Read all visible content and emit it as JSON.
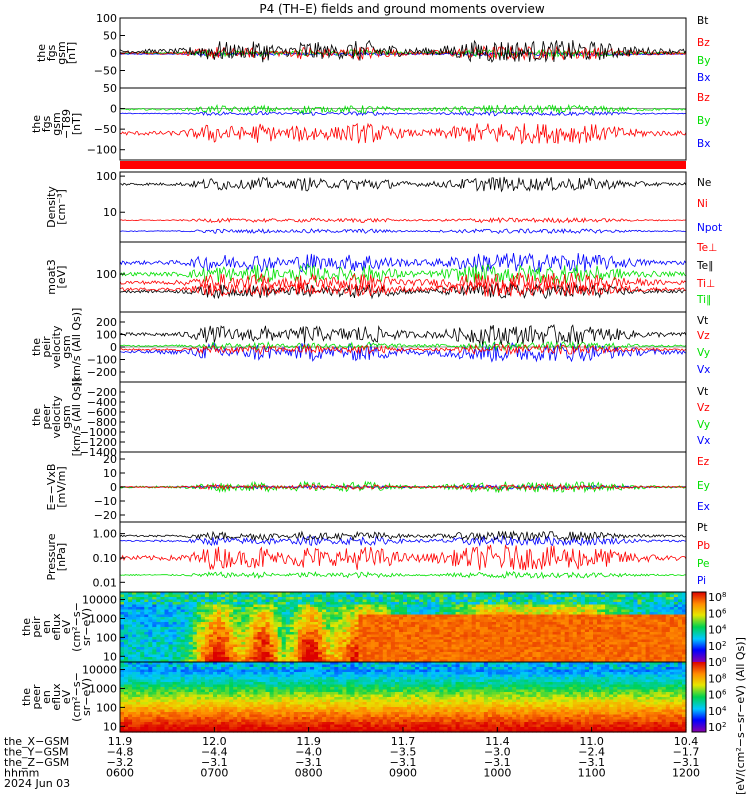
{
  "title": "P4 (TH–E) fields and ground moments overview",
  "colors": {
    "black": "#000000",
    "red": "#ff0000",
    "green": "#00e000",
    "blue": "#0000ff"
  },
  "chart_data": [
    {
      "type": "line",
      "panel": "fgs-gsm",
      "ylabel": [
        "the",
        "fgs",
        "gsm",
        "[nT]"
      ],
      "ylim": [
        -100,
        100
      ],
      "yticks": [
        {
          "v": 100,
          "label": "100"
        },
        {
          "v": 50,
          "label": "50"
        },
        {
          "v": 0,
          "label": "0"
        },
        {
          "v": -50,
          "label": "−50"
        }
      ],
      "series": [
        {
          "name": "Bt",
          "color": "#000000",
          "base": 5,
          "amp": 25
        },
        {
          "name": "Bz",
          "color": "#ff0000",
          "base": 0,
          "amp": 15
        },
        {
          "name": "By",
          "color": "#00e000",
          "base": 0,
          "amp": 8
        },
        {
          "name": "Bx",
          "color": "#0000ff",
          "base": -3,
          "amp": 4
        }
      ]
    },
    {
      "type": "line",
      "panel": "fgs-gsm-dipole",
      "ylabel": [
        "the",
        "fgs",
        "gsm",
        "−T89",
        "[nT]"
      ],
      "ylim": [
        -125,
        50
      ],
      "yticks": [
        {
          "v": 50,
          "label": "50"
        },
        {
          "v": 0,
          "label": "0"
        },
        {
          "v": -50,
          "label": "−50"
        },
        {
          "v": -100,
          "label": "−100"
        }
      ],
      "series": [
        {
          "name": "Bz",
          "color": "#ff0000",
          "base": -60,
          "amp": 20
        },
        {
          "name": "By",
          "color": "#00e000",
          "base": -2,
          "amp": 8
        },
        {
          "name": "Bx",
          "color": "#0000ff",
          "base": -12,
          "amp": 4
        }
      ]
    },
    {
      "type": "line",
      "panel": "density",
      "scale": "log",
      "ylabel": [
        "Density",
        "[cm⁻³]"
      ],
      "ylim": [
        1.5,
        130
      ],
      "yticks": [
        {
          "v": 100,
          "label": "100"
        },
        {
          "v": 10,
          "label": "10"
        }
      ],
      "series": [
        {
          "name": "Ne",
          "color": "#000000",
          "base": 60,
          "amp": 0.3
        },
        {
          "name": "Ni",
          "color": "#ff0000",
          "base": 6,
          "amp": 0.1
        },
        {
          "name": "Npot",
          "color": "#0000ff",
          "base": 3,
          "amp": 0.1
        }
      ]
    },
    {
      "type": "line",
      "panel": "temperature",
      "scale": "log",
      "ylabel": [
        "moat3",
        "[eV]"
      ],
      "ylim": [
        10,
        700
      ],
      "yticks": [
        {
          "v": 100,
          "label": "100"
        }
      ],
      "series": [
        {
          "name": "Te⊥",
          "color": "#ff0000",
          "base": 40,
          "amp": 0.3
        },
        {
          "name": "Te∥",
          "color": "#000000",
          "base": 35,
          "amp": 0.3
        },
        {
          "name": "Ti⊥",
          "color": "#ff0000",
          "base": 60,
          "amp": 0.4
        },
        {
          "name": "Ti∥",
          "color": "#00e000",
          "base": 100,
          "amp": 0.4
        }
      ],
      "extra_series": [
        {
          "name": "",
          "color": "#0000ff",
          "base": 200,
          "amp": 0.4
        }
      ]
    },
    {
      "type": "line",
      "panel": "peir-velocity",
      "ylabel": [
        "the",
        "peir",
        "velocity",
        "gsm",
        "[km/s (All Qs)]"
      ],
      "ylim": [
        -280,
        280
      ],
      "yticks": [
        {
          "v": 200,
          "label": "200"
        },
        {
          "v": 100,
          "label": "100"
        },
        {
          "v": 0,
          "label": "0"
        },
        {
          "v": -100,
          "label": "−100"
        },
        {
          "v": -200,
          "label": "−200"
        }
      ],
      "series": [
        {
          "name": "Vt",
          "color": "#000000",
          "base": 100,
          "amp": 60
        },
        {
          "name": "Vz",
          "color": "#ff0000",
          "base": -20,
          "amp": 30
        },
        {
          "name": "Vy",
          "color": "#00e000",
          "base": 10,
          "amp": 25
        },
        {
          "name": "Vx",
          "color": "#0000ff",
          "base": -40,
          "amp": 60
        }
      ]
    },
    {
      "type": "line",
      "panel": "peer-velocity",
      "ylabel": [
        "the",
        "peer",
        "velocity",
        "gsm",
        "[km/s (All Qs)]"
      ],
      "ylim": [
        -1400,
        0
      ],
      "yticks": [
        {
          "v": -200,
          "label": "−200"
        },
        {
          "v": -400,
          "label": "−400"
        },
        {
          "v": -600,
          "label": "−600"
        },
        {
          "v": -800,
          "label": "−800"
        },
        {
          "v": -1000,
          "label": "−1000"
        },
        {
          "v": -1200,
          "label": "−1200"
        },
        {
          "v": -1400,
          "label": "−1400"
        }
      ],
      "series": [
        {
          "name": "Vt",
          "color": "#000000",
          "base": 0,
          "amp": 0
        },
        {
          "name": "Vz",
          "color": "#ff0000",
          "base": 0,
          "amp": 0
        },
        {
          "name": "Vy",
          "color": "#00e000",
          "base": 0,
          "amp": 0
        },
        {
          "name": "Vx",
          "color": "#0000ff",
          "base": 0,
          "amp": 0
        }
      ]
    },
    {
      "type": "line",
      "panel": "efield",
      "ylabel": [
        "E=−VxB",
        "[mV/m]"
      ],
      "ylim": [
        -25,
        25
      ],
      "yticks": [
        {
          "v": 20,
          "label": "20"
        },
        {
          "v": 10,
          "label": "10"
        },
        {
          "v": 0,
          "label": "0"
        },
        {
          "v": -10,
          "label": "−10"
        },
        {
          "v": -20,
          "label": "−20"
        }
      ],
      "series": [
        {
          "name": "Ez",
          "color": "#ff0000",
          "base": 0,
          "amp": 1.5
        },
        {
          "name": "Ey",
          "color": "#00e000",
          "base": 0,
          "amp": 3
        },
        {
          "name": "Ex",
          "color": "#0000ff",
          "base": 0,
          "amp": 1
        }
      ]
    },
    {
      "type": "line",
      "panel": "pressure",
      "scale": "log",
      "ylabel": [
        "Pressure",
        "[nPa]"
      ],
      "ylim": [
        0.004,
        3
      ],
      "yticks": [
        {
          "v": 1,
          "label": "1.00"
        },
        {
          "v": 0.1,
          "label": "0.10"
        },
        {
          "v": 0.01,
          "label": "0.01"
        }
      ],
      "series": [
        {
          "name": "Pt",
          "color": "#000000",
          "base": 0.8,
          "amp": 0.3
        },
        {
          "name": "Pb",
          "color": "#ff0000",
          "base": 0.1,
          "amp": 0.8
        },
        {
          "name": "Pe",
          "color": "#00e000",
          "base": 0.02,
          "amp": 0.2
        },
        {
          "name": "Pi",
          "color": "#0000ff",
          "base": 0.5,
          "amp": 0.3
        }
      ]
    },
    {
      "type": "heatmap",
      "panel": "peir-en-eflux",
      "ylabel": [
        "the",
        "peir",
        "en",
        "eflux",
        "eV",
        "(cm²−s−",
        "sr−eV)"
      ],
      "scale": "log",
      "ylim": [
        5,
        25000
      ],
      "yticks": [
        {
          "v": 10000,
          "label": "10000"
        },
        {
          "v": 1000,
          "label": "1000"
        },
        {
          "v": 100,
          "label": "100"
        },
        {
          "v": 10,
          "label": "10"
        }
      ]
    },
    {
      "type": "heatmap",
      "panel": "peer-en-eflux",
      "ylabel": [
        "the",
        "peer",
        "en",
        "eflux",
        "eV",
        "(cm²−s−",
        "sr−eV)"
      ],
      "scale": "log",
      "ylim": [
        5,
        25000
      ],
      "yticks": [
        {
          "v": 10000,
          "label": "10000"
        },
        {
          "v": 1000,
          "label": "1000"
        },
        {
          "v": 100,
          "label": "100"
        },
        {
          "v": 10,
          "label": "10"
        }
      ]
    }
  ],
  "colorbar": {
    "label": "[eV/(cm²−s−sr−eV)]",
    "label2": "[eV/(cm²−s−sr−eV) (All Qs)]",
    "ticks": [
      {
        "exp": "8"
      },
      {
        "exp": "6"
      },
      {
        "exp": "4"
      },
      {
        "exp": "2"
      },
      {
        "exp": "0"
      },
      {
        "exp": "8"
      },
      {
        "exp": "6"
      },
      {
        "exp": "4"
      },
      {
        "exp": "2"
      }
    ]
  },
  "xaxis": {
    "rows": [
      {
        "label": "the_X−GSM",
        "values": [
          "11.9",
          "12.0",
          "11.9",
          "11.7",
          "11.4",
          "11.0",
          "10.4"
        ]
      },
      {
        "label": "the_Y−GSM",
        "values": [
          "−4.8",
          "−4.4",
          "−4.0",
          "−3.5",
          "−3.0",
          "−2.4",
          "−1.7"
        ]
      },
      {
        "label": "the_Z−GSM",
        "values": [
          "−3.2",
          "−3.1",
          "−3.1",
          "−3.1",
          "−3.1",
          "−3.1",
          "−3.1"
        ]
      },
      {
        "label": "hhmm",
        "values": [
          "0600",
          "0700",
          "0800",
          "0900",
          "1000",
          "1100",
          "1200"
        ]
      }
    ],
    "date": "2024 Jun 03"
  }
}
